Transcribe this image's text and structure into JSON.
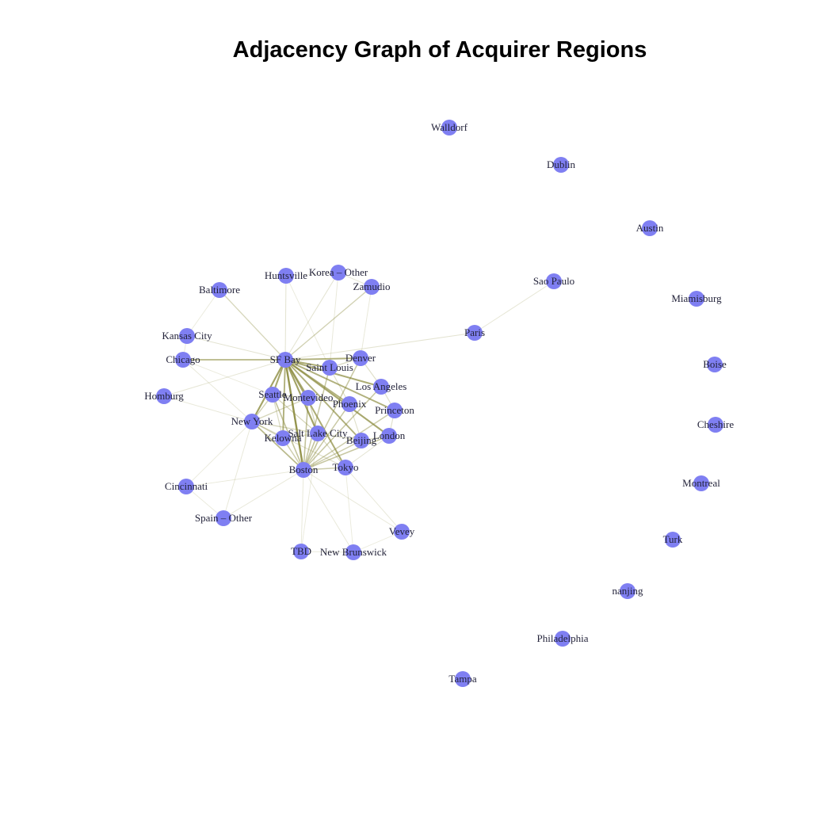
{
  "title": "Adjacency Graph of Acquirer Regions",
  "colors": {
    "node": "#7f7ff2",
    "edge": "#8a8a3c",
    "label": "#23233a",
    "title": "#000000"
  },
  "nodes": [
    {
      "id": "sf_bay",
      "label": "SF Bay"
    },
    {
      "id": "boston",
      "label": "Boston"
    },
    {
      "id": "new_york",
      "label": "New York"
    },
    {
      "id": "seattle",
      "label": "Seattle"
    },
    {
      "id": "montevideo",
      "label": "Montevideo"
    },
    {
      "id": "saint_louis",
      "label": "Saint Louis"
    },
    {
      "id": "denver",
      "label": "Denver"
    },
    {
      "id": "los_angeles",
      "label": "Los Angeles"
    },
    {
      "id": "phoenix",
      "label": "Phoenix"
    },
    {
      "id": "princeton",
      "label": "Princeton"
    },
    {
      "id": "london",
      "label": "London"
    },
    {
      "id": "beijing",
      "label": "Beijing"
    },
    {
      "id": "salt_lake_city",
      "label": "Salt Lake City"
    },
    {
      "id": "kelowna",
      "label": "Kelowna"
    },
    {
      "id": "tokyo",
      "label": "Tokyo"
    },
    {
      "id": "huntsville",
      "label": "Huntsville"
    },
    {
      "id": "korea_other",
      "label": "Korea – Other"
    },
    {
      "id": "zamudio",
      "label": "Zamudio"
    },
    {
      "id": "baltimore",
      "label": "Baltimore"
    },
    {
      "id": "kansas_city",
      "label": "Kansas City"
    },
    {
      "id": "chicago",
      "label": "Chicago"
    },
    {
      "id": "homburg",
      "label": "Homburg"
    },
    {
      "id": "cincinnati",
      "label": "Cincinnati"
    },
    {
      "id": "spain_other",
      "label": "Spain – Other"
    },
    {
      "id": "tbd",
      "label": "TBD"
    },
    {
      "id": "new_brunswick",
      "label": "New Brunswick"
    },
    {
      "id": "vevey",
      "label": "Vevey"
    },
    {
      "id": "paris",
      "label": "Paris"
    },
    {
      "id": "sao_paulo",
      "label": "Sao Paulo"
    },
    {
      "id": "walldorf",
      "label": "Walldorf"
    },
    {
      "id": "dublin",
      "label": "Dublin"
    },
    {
      "id": "austin",
      "label": "Austin"
    },
    {
      "id": "miamisburg",
      "label": "Miamisburg"
    },
    {
      "id": "boise",
      "label": "Boise"
    },
    {
      "id": "cheshire",
      "label": "Cheshire"
    },
    {
      "id": "montreal",
      "label": "Montreal"
    },
    {
      "id": "turk",
      "label": "Turk"
    },
    {
      "id": "nanjing",
      "label": "nanjing"
    },
    {
      "id": "philadelphia",
      "label": "Philadelphia"
    },
    {
      "id": "tampa",
      "label": "Tampa"
    }
  ],
  "edges": [
    {
      "source": "sf_bay",
      "target": "boston",
      "weight": 1.0
    },
    {
      "source": "sf_bay",
      "target": "new_york",
      "weight": 0.85
    },
    {
      "source": "sf_bay",
      "target": "seattle",
      "weight": 0.8
    },
    {
      "source": "sf_bay",
      "target": "montevideo",
      "weight": 0.75
    },
    {
      "source": "sf_bay",
      "target": "saint_louis",
      "weight": 0.75
    },
    {
      "source": "sf_bay",
      "target": "denver",
      "weight": 0.7
    },
    {
      "source": "sf_bay",
      "target": "los_angeles",
      "weight": 0.75
    },
    {
      "source": "sf_bay",
      "target": "phoenix",
      "weight": 0.7
    },
    {
      "source": "sf_bay",
      "target": "princeton",
      "weight": 0.7
    },
    {
      "source": "sf_bay",
      "target": "london",
      "weight": 0.8
    },
    {
      "source": "sf_bay",
      "target": "beijing",
      "weight": 0.7
    },
    {
      "source": "sf_bay",
      "target": "salt_lake_city",
      "weight": 0.85
    },
    {
      "source": "sf_bay",
      "target": "kelowna",
      "weight": 0.7
    },
    {
      "source": "sf_bay",
      "target": "tokyo",
      "weight": 0.75
    },
    {
      "source": "sf_bay",
      "target": "chicago",
      "weight": 0.65
    },
    {
      "source": "sf_bay",
      "target": "baltimore",
      "weight": 0.3
    },
    {
      "source": "sf_bay",
      "target": "zamudio",
      "weight": 0.35
    },
    {
      "source": "sf_bay",
      "target": "korea_other",
      "weight": 0.15
    },
    {
      "source": "sf_bay",
      "target": "huntsville",
      "weight": 0.15
    },
    {
      "source": "sf_bay",
      "target": "paris",
      "weight": 0.15
    },
    {
      "source": "sf_bay",
      "target": "kansas_city",
      "weight": 0.15
    },
    {
      "source": "sf_bay",
      "target": "homburg",
      "weight": 0.12
    },
    {
      "source": "boston",
      "target": "new_york",
      "weight": 0.6
    },
    {
      "source": "boston",
      "target": "seattle",
      "weight": 0.5
    },
    {
      "source": "boston",
      "target": "montevideo",
      "weight": 0.5
    },
    {
      "source": "boston",
      "target": "saint_louis",
      "weight": 0.45
    },
    {
      "source": "boston",
      "target": "denver",
      "weight": 0.45
    },
    {
      "source": "boston",
      "target": "los_angeles",
      "weight": 0.45
    },
    {
      "source": "boston",
      "target": "phoenix",
      "weight": 0.45
    },
    {
      "source": "boston",
      "target": "princeton",
      "weight": 0.4
    },
    {
      "source": "boston",
      "target": "london",
      "weight": 0.45
    },
    {
      "source": "boston",
      "target": "beijing",
      "weight": 0.4
    },
    {
      "source": "boston",
      "target": "salt_lake_city",
      "weight": 0.5
    },
    {
      "source": "boston",
      "target": "kelowna",
      "weight": 0.4
    },
    {
      "source": "boston",
      "target": "tokyo",
      "weight": 0.4
    },
    {
      "source": "boston",
      "target": "cincinnati",
      "weight": 0.1
    },
    {
      "source": "boston",
      "target": "spain_other",
      "weight": 0.1
    },
    {
      "source": "boston",
      "target": "tbd",
      "weight": 0.1
    },
    {
      "source": "boston",
      "target": "new_brunswick",
      "weight": 0.1
    },
    {
      "source": "boston",
      "target": "vevey",
      "weight": 0.1
    },
    {
      "source": "new_york",
      "target": "seattle",
      "weight": 0.35
    },
    {
      "source": "new_york",
      "target": "montevideo",
      "weight": 0.3
    },
    {
      "source": "new_york",
      "target": "kelowna",
      "weight": 0.35
    },
    {
      "source": "new_york",
      "target": "salt_lake_city",
      "weight": 0.3
    },
    {
      "source": "new_york",
      "target": "tokyo",
      "weight": 0.2
    },
    {
      "source": "new_york",
      "target": "chicago",
      "weight": 0.1
    },
    {
      "source": "new_york",
      "target": "homburg",
      "weight": 0.1
    },
    {
      "source": "new_york",
      "target": "spain_other",
      "weight": 0.1
    },
    {
      "source": "new_york",
      "target": "cincinnati",
      "weight": 0.08
    },
    {
      "source": "seattle",
      "target": "montevideo",
      "weight": 0.3
    },
    {
      "source": "seattle",
      "target": "salt_lake_city",
      "weight": 0.3
    },
    {
      "source": "seattle",
      "target": "kelowna",
      "weight": 0.25
    },
    {
      "source": "montevideo",
      "target": "phoenix",
      "weight": 0.25
    },
    {
      "source": "montevideo",
      "target": "salt_lake_city",
      "weight": 0.3
    },
    {
      "source": "saint_louis",
      "target": "denver",
      "weight": 0.25
    },
    {
      "source": "saint_louis",
      "target": "phoenix",
      "weight": 0.2
    },
    {
      "source": "denver",
      "target": "los_angeles",
      "weight": 0.2
    },
    {
      "source": "los_angeles",
      "target": "princeton",
      "weight": 0.2
    },
    {
      "source": "phoenix",
      "target": "beijing",
      "weight": 0.2
    },
    {
      "source": "princeton",
      "target": "london",
      "weight": 0.2
    },
    {
      "source": "london",
      "target": "beijing",
      "weight": 0.25
    },
    {
      "source": "beijing",
      "target": "salt_lake_city",
      "weight": 0.25
    },
    {
      "source": "salt_lake_city",
      "target": "tokyo",
      "weight": 0.25
    },
    {
      "source": "kelowna",
      "target": "salt_lake_city",
      "weight": 0.25
    },
    {
      "source": "tokyo",
      "target": "london",
      "weight": 0.15
    },
    {
      "source": "tokyo",
      "target": "vevey",
      "weight": 0.1
    },
    {
      "source": "tokyo",
      "target": "new_brunswick",
      "weight": 0.08
    },
    {
      "source": "tbd",
      "target": "new_brunswick",
      "weight": 0.08
    },
    {
      "source": "tbd",
      "target": "salt_lake_city",
      "weight": 0.08
    },
    {
      "source": "new_brunswick",
      "target": "vevey",
      "weight": 0.08
    },
    {
      "source": "spain_other",
      "target": "cincinnati",
      "weight": 0.08
    },
    {
      "source": "huntsville",
      "target": "korea_other",
      "weight": 0.08
    },
    {
      "source": "korea_other",
      "target": "zamudio",
      "weight": 0.1
    },
    {
      "source": "huntsville",
      "target": "saint_louis",
      "weight": 0.08
    },
    {
      "source": "korea_other",
      "target": "saint_louis",
      "weight": 0.1
    },
    {
      "source": "zamudio",
      "target": "denver",
      "weight": 0.1
    },
    {
      "source": "baltimore",
      "target": "kansas_city",
      "weight": 0.08
    },
    {
      "source": "chicago",
      "target": "seattle",
      "weight": 0.08
    },
    {
      "source": "kansas_city",
      "target": "chicago",
      "weight": 0.08
    },
    {
      "source": "paris",
      "target": "sao_paulo",
      "weight": 0.12
    }
  ]
}
